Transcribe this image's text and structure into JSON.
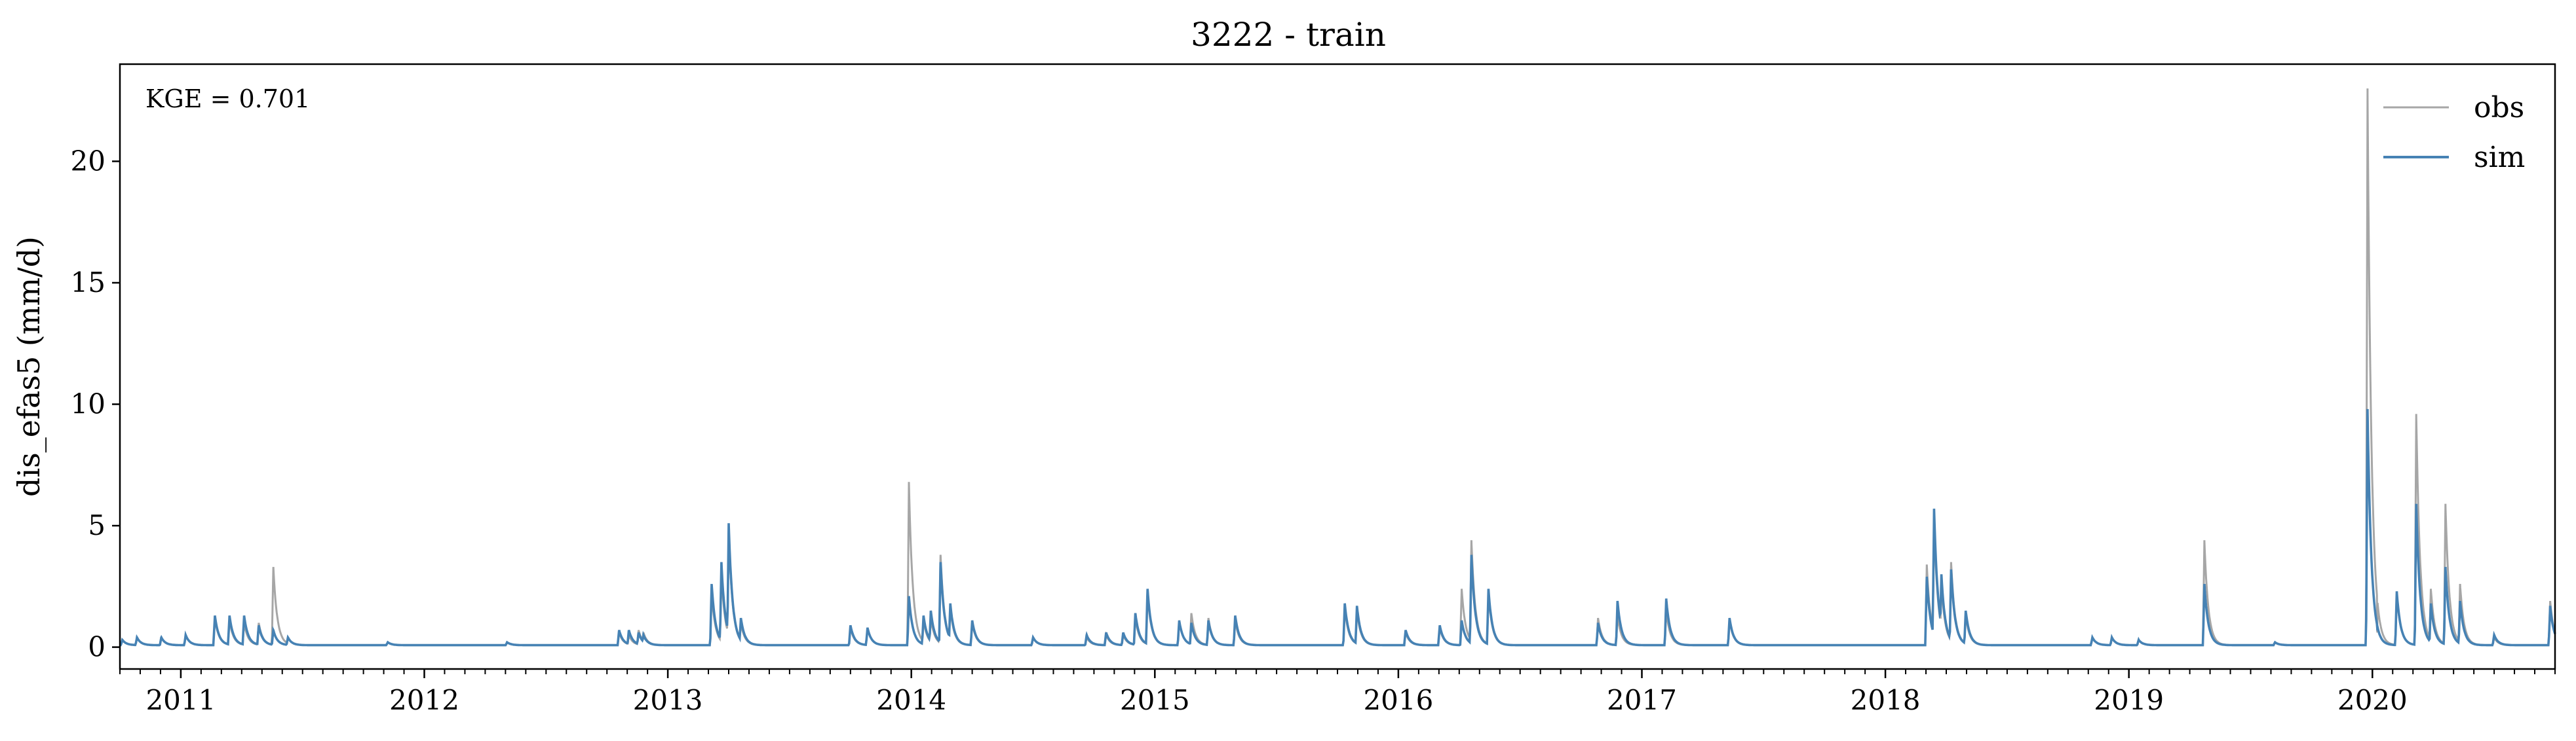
{
  "chart_data": {
    "type": "line",
    "title": "3222 - train",
    "xlabel": "",
    "ylabel": "dis_efas5 (mm/d)",
    "xlim": [
      2010.75,
      2020.75
    ],
    "ylim": [
      -0.9,
      24.0
    ],
    "yticks": [
      0,
      5,
      10,
      15,
      20
    ],
    "ytick_labels": [
      "0",
      "5",
      "10",
      "15",
      "20"
    ],
    "xticks": [
      2011,
      2012,
      2013,
      2014,
      2015,
      2016,
      2017,
      2018,
      2019,
      2020
    ],
    "xtick_labels": [
      "2011",
      "2012",
      "2013",
      "2014",
      "2015",
      "2016",
      "2017",
      "2018",
      "2019",
      "2020"
    ],
    "grid": false,
    "legend_position": "top-right",
    "annotation": "KGE = 0.701",
    "colors": {
      "obs": "#a6a6a6",
      "sim": "#4682b4"
    },
    "series": [
      {
        "name": "obs",
        "baseline": 0.08,
        "events": [
          [
            2010.76,
            0.3
          ],
          [
            2010.82,
            0.4
          ],
          [
            2010.92,
            0.4
          ],
          [
            2011.02,
            0.5
          ],
          [
            2011.14,
            1.2
          ],
          [
            2011.2,
            1.1
          ],
          [
            2011.26,
            1.0
          ],
          [
            2011.32,
            1.0
          ],
          [
            2011.38,
            3.3
          ],
          [
            2011.44,
            0.4
          ],
          [
            2011.85,
            0.2
          ],
          [
            2012.34,
            0.2
          ],
          [
            2012.8,
            0.6
          ],
          [
            2012.84,
            0.5
          ],
          [
            2012.88,
            0.7
          ],
          [
            2012.9,
            0.6
          ],
          [
            2013.18,
            2.2
          ],
          [
            2013.22,
            3.0
          ],
          [
            2013.25,
            4.8
          ],
          [
            2013.3,
            1.0
          ],
          [
            2013.75,
            0.8
          ],
          [
            2013.82,
            0.8
          ],
          [
            2013.99,
            6.8
          ],
          [
            2014.05,
            1.1
          ],
          [
            2014.08,
            1.2
          ],
          [
            2014.12,
            3.8
          ],
          [
            2014.16,
            1.6
          ],
          [
            2014.25,
            1.0
          ],
          [
            2014.5,
            0.4
          ],
          [
            2014.72,
            0.4
          ],
          [
            2014.8,
            0.5
          ],
          [
            2014.87,
            0.5
          ],
          [
            2014.92,
            1.2
          ],
          [
            2014.97,
            2.2
          ],
          [
            2015.1,
            1.1
          ],
          [
            2015.15,
            1.4
          ],
          [
            2015.22,
            1.2
          ],
          [
            2015.33,
            1.1
          ],
          [
            2015.78,
            1.6
          ],
          [
            2015.83,
            1.5
          ],
          [
            2016.03,
            0.6
          ],
          [
            2016.17,
            0.8
          ],
          [
            2016.26,
            2.4
          ],
          [
            2016.3,
            4.4
          ],
          [
            2016.37,
            2.2
          ],
          [
            2016.82,
            1.2
          ],
          [
            2016.9,
            1.3
          ],
          [
            2017.1,
            1.5
          ],
          [
            2017.36,
            1.1
          ],
          [
            2018.17,
            3.4
          ],
          [
            2018.2,
            5.2
          ],
          [
            2018.23,
            2.6
          ],
          [
            2018.27,
            3.5
          ],
          [
            2018.33,
            1.3
          ],
          [
            2018.85,
            0.4
          ],
          [
            2018.93,
            0.4
          ],
          [
            2019.04,
            0.3
          ],
          [
            2019.31,
            4.4
          ],
          [
            2019.6,
            0.2
          ],
          [
            2019.98,
            23.0
          ],
          [
            2020.02,
            0.6
          ],
          [
            2020.1,
            2.2
          ],
          [
            2020.18,
            9.6
          ],
          [
            2020.24,
            2.4
          ],
          [
            2020.3,
            5.9
          ],
          [
            2020.36,
            2.6
          ],
          [
            2020.5,
            0.4
          ],
          [
            2020.73,
            1.9
          ]
        ]
      },
      {
        "name": "sim",
        "baseline": 0.08,
        "events": [
          [
            2010.76,
            0.3
          ],
          [
            2010.82,
            0.4
          ],
          [
            2010.92,
            0.4
          ],
          [
            2011.02,
            0.5
          ],
          [
            2011.14,
            1.3
          ],
          [
            2011.2,
            1.3
          ],
          [
            2011.26,
            1.3
          ],
          [
            2011.32,
            0.9
          ],
          [
            2011.38,
            0.7
          ],
          [
            2011.44,
            0.4
          ],
          [
            2011.85,
            0.2
          ],
          [
            2012.34,
            0.2
          ],
          [
            2012.8,
            0.7
          ],
          [
            2012.84,
            0.7
          ],
          [
            2012.88,
            0.6
          ],
          [
            2012.9,
            0.5
          ],
          [
            2013.18,
            2.6
          ],
          [
            2013.22,
            3.5
          ],
          [
            2013.25,
            5.1
          ],
          [
            2013.3,
            1.2
          ],
          [
            2013.75,
            0.9
          ],
          [
            2013.82,
            0.8
          ],
          [
            2013.99,
            2.1
          ],
          [
            2014.05,
            1.3
          ],
          [
            2014.08,
            1.5
          ],
          [
            2014.12,
            3.5
          ],
          [
            2014.16,
            1.8
          ],
          [
            2014.25,
            1.1
          ],
          [
            2014.5,
            0.4
          ],
          [
            2014.72,
            0.5
          ],
          [
            2014.8,
            0.6
          ],
          [
            2014.87,
            0.6
          ],
          [
            2014.92,
            1.4
          ],
          [
            2014.97,
            2.4
          ],
          [
            2015.1,
            1.1
          ],
          [
            2015.15,
            1.0
          ],
          [
            2015.22,
            1.1
          ],
          [
            2015.33,
            1.3
          ],
          [
            2015.78,
            1.8
          ],
          [
            2015.83,
            1.7
          ],
          [
            2016.03,
            0.7
          ],
          [
            2016.17,
            0.9
          ],
          [
            2016.26,
            1.1
          ],
          [
            2016.3,
            3.8
          ],
          [
            2016.37,
            2.4
          ],
          [
            2016.82,
            1.0
          ],
          [
            2016.9,
            1.9
          ],
          [
            2017.1,
            2.0
          ],
          [
            2017.36,
            1.2
          ],
          [
            2018.17,
            2.9
          ],
          [
            2018.2,
            5.7
          ],
          [
            2018.23,
            3.0
          ],
          [
            2018.27,
            3.2
          ],
          [
            2018.33,
            1.5
          ],
          [
            2018.85,
            0.4
          ],
          [
            2018.93,
            0.4
          ],
          [
            2019.04,
            0.3
          ],
          [
            2019.31,
            2.6
          ],
          [
            2019.6,
            0.2
          ],
          [
            2019.98,
            9.8
          ],
          [
            2020.02,
            0.8
          ],
          [
            2020.1,
            2.3
          ],
          [
            2020.18,
            5.9
          ],
          [
            2020.24,
            1.8
          ],
          [
            2020.3,
            3.3
          ],
          [
            2020.36,
            1.9
          ],
          [
            2020.5,
            0.5
          ],
          [
            2020.73,
            1.7
          ]
        ]
      }
    ]
  }
}
